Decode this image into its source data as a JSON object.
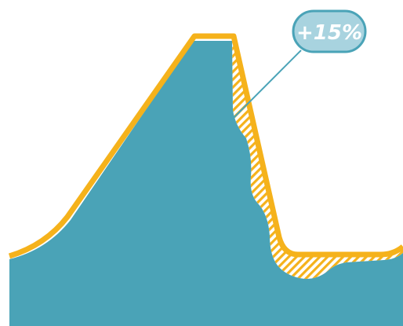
{
  "callout": {
    "text": "+15%"
  },
  "colors": {
    "background": "#ffffff",
    "teal_fill": "#4aa3b7",
    "orange_outline": "#f5b21b",
    "hatch_fill": "#f5b21b",
    "callout_bg": "#a8d3df",
    "callout_border": "#4aa3b7",
    "callout_text": "#ffffff",
    "leader_line": "#4aa3b7"
  }
}
